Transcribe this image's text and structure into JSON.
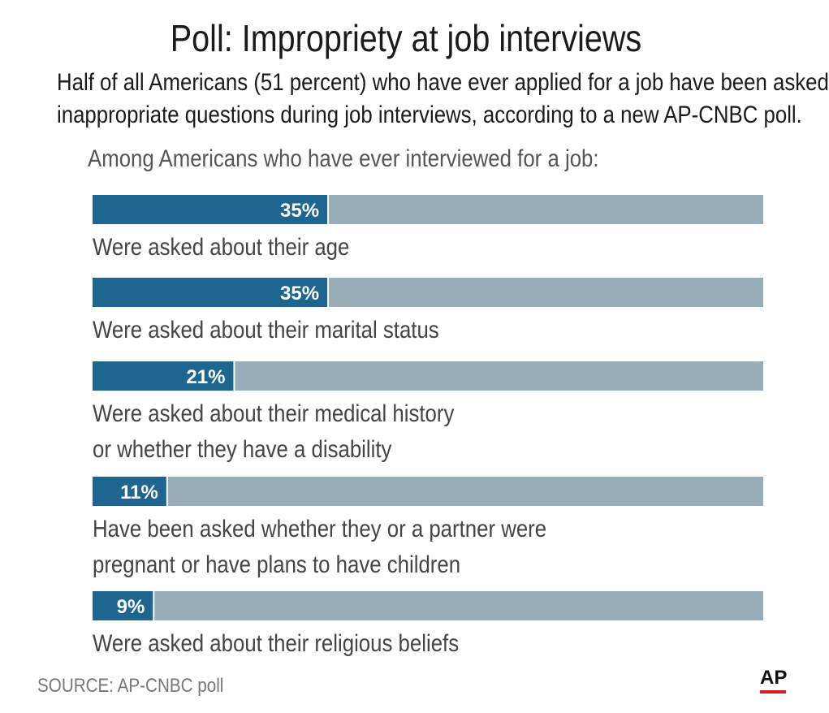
{
  "colors": {
    "bar_fill": "#1e6690",
    "bar_track": "#97adb7",
    "ap_rule": "#d32020"
  },
  "header": {
    "title": "Poll: Impropriety at job interviews",
    "subtitle_lines": [
      "Half of all Americans (51 percent) who have ever applied for a job have been asked",
      "inappropriate questions during job interviews, according to a new AP-CNBC poll."
    ],
    "intro": "Among Americans who have ever interviewed for a job:"
  },
  "chart_data": {
    "type": "bar",
    "orientation": "horizontal",
    "xlim": [
      0,
      100
    ],
    "categories": [
      [
        "Were asked about their age"
      ],
      [
        "Were asked about their marital status"
      ],
      [
        "Were asked about their medical history",
        "or whether they have a disability"
      ],
      [
        "Have been asked whether they or a partner were",
        "pregnant or have plans to have children"
      ],
      [
        "Were asked about their religious beliefs"
      ]
    ],
    "values": [
      35,
      35,
      21,
      11,
      9
    ],
    "value_labels": [
      "35%",
      "35%",
      "21%",
      "11%",
      "9%"
    ]
  },
  "footer": {
    "source": "SOURCE: AP-CNBC poll",
    "logo": "AP"
  }
}
